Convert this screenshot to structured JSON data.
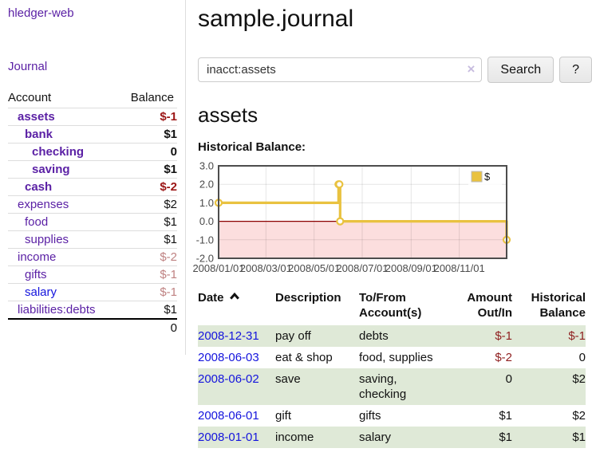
{
  "colors": {
    "link_purple": "#5b21a5",
    "link_blue": "#1414dd",
    "negative_dark": "#9c1616",
    "negative_pale": "#bf8282",
    "negative_txn": "#8f1f1f",
    "row_green": "#dfe9d7",
    "chart_line": "#e9c240",
    "chart_negative_fill": "#fcdede",
    "chart_zero_line": "#8b0000"
  },
  "sidebar": {
    "app_title": "hledger-web",
    "journal_label": "Journal",
    "accounts": {
      "headers": {
        "account": "Account",
        "balance": "Balance"
      },
      "rows": [
        {
          "name": "assets",
          "balance": "$-1",
          "depth": 1,
          "bold": true,
          "negative": true
        },
        {
          "name": "bank",
          "balance": "$1",
          "depth": 2,
          "bold": true,
          "negative": false
        },
        {
          "name": "checking",
          "balance": "0",
          "depth": 3,
          "bold": true,
          "negative": false
        },
        {
          "name": "saving",
          "balance": "$1",
          "depth": 3,
          "bold": true,
          "negative": false
        },
        {
          "name": "cash",
          "balance": "$-2",
          "depth": 2,
          "bold": true,
          "negative": true
        },
        {
          "name": "expenses",
          "balance": "$2",
          "depth": 1,
          "bold": false,
          "negative": false
        },
        {
          "name": "food",
          "balance": "$1",
          "depth": 2,
          "bold": false,
          "negative": false
        },
        {
          "name": "supplies",
          "balance": "$1",
          "depth": 2,
          "bold": false,
          "negative": false
        },
        {
          "name": "income",
          "balance": "$-2",
          "depth": 1,
          "bold": false,
          "negative": true
        },
        {
          "name": "gifts",
          "balance": "$-1",
          "depth": 2,
          "bold": false,
          "negative": true
        },
        {
          "name": "salary",
          "balance": "$-1",
          "depth": 2,
          "bold": false,
          "negative": true,
          "link_color": "blue"
        },
        {
          "name": "liabilities:debts",
          "balance": "$1",
          "depth": 1,
          "bold": false,
          "negative": false
        }
      ],
      "total": "0"
    }
  },
  "header": {
    "title": "sample.journal"
  },
  "search": {
    "value": "inacct:assets",
    "clear_icon": "×",
    "button_label": "Search",
    "help_label": "?"
  },
  "account_view": {
    "heading": "assets",
    "section_label": "Historical Balance:"
  },
  "chart_data": {
    "type": "line",
    "style": "step-after",
    "title": "Historical Balance",
    "legend": {
      "label": "$",
      "position": "top-right"
    },
    "x_range": [
      "2008-01-01",
      "2008-12-31"
    ],
    "ylim": [
      -2.0,
      3.0
    ],
    "yticks": [
      [
        3.0,
        "3.0"
      ],
      [
        2.0,
        "2.0"
      ],
      [
        1.0,
        "1.0"
      ],
      [
        0.0,
        "0.0"
      ],
      [
        -1.0,
        "-1.0"
      ],
      [
        -2.0,
        "-2.0"
      ]
    ],
    "xticks": [
      {
        "date": "2008-01-01",
        "label": "2008/01/01"
      },
      {
        "date": "2008-03-01",
        "label": "2008/03/01"
      },
      {
        "date": "2008-05-01",
        "label": "2008/05/01"
      },
      {
        "date": "2008-07-01",
        "label": "2008/07/01"
      },
      {
        "date": "2008-09-01",
        "label": "2008/09/01"
      },
      {
        "date": "2008-11-01",
        "label": "2008/11/01"
      }
    ],
    "series": [
      {
        "name": "$",
        "points": [
          [
            "2008-01-01",
            1
          ],
          [
            "2008-06-01",
            2
          ],
          [
            "2008-06-02",
            2
          ],
          [
            "2008-06-03",
            0
          ],
          [
            "2008-12-31",
            -1
          ]
        ]
      }
    ],
    "grid": true,
    "negative_region_shaded": true
  },
  "transactions": {
    "headers": {
      "date": "Date",
      "description": "Description",
      "accounts": "To/From Account(s)",
      "amount": "Amount Out/In",
      "balance": "Historical Balance"
    },
    "rows": [
      {
        "date": "2008-12-31",
        "description": "pay off",
        "accounts": "debts",
        "amount": "$-1",
        "amount_negative": true,
        "balance": "$-1",
        "balance_negative": true
      },
      {
        "date": "2008-06-03",
        "description": "eat & shop",
        "accounts": "food, supplies",
        "amount": "$-2",
        "amount_negative": true,
        "balance": "0",
        "balance_negative": false
      },
      {
        "date": "2008-06-02",
        "description": "save",
        "accounts": "saving, checking",
        "amount": "0",
        "amount_negative": false,
        "balance": "$2",
        "balance_negative": false
      },
      {
        "date": "2008-06-01",
        "description": "gift",
        "accounts": "gifts",
        "amount": "$1",
        "amount_negative": false,
        "balance": "$2",
        "balance_negative": false
      },
      {
        "date": "2008-01-01",
        "description": "income",
        "accounts": "salary",
        "amount": "$1",
        "amount_negative": false,
        "balance": "$1",
        "balance_negative": false
      }
    ]
  }
}
